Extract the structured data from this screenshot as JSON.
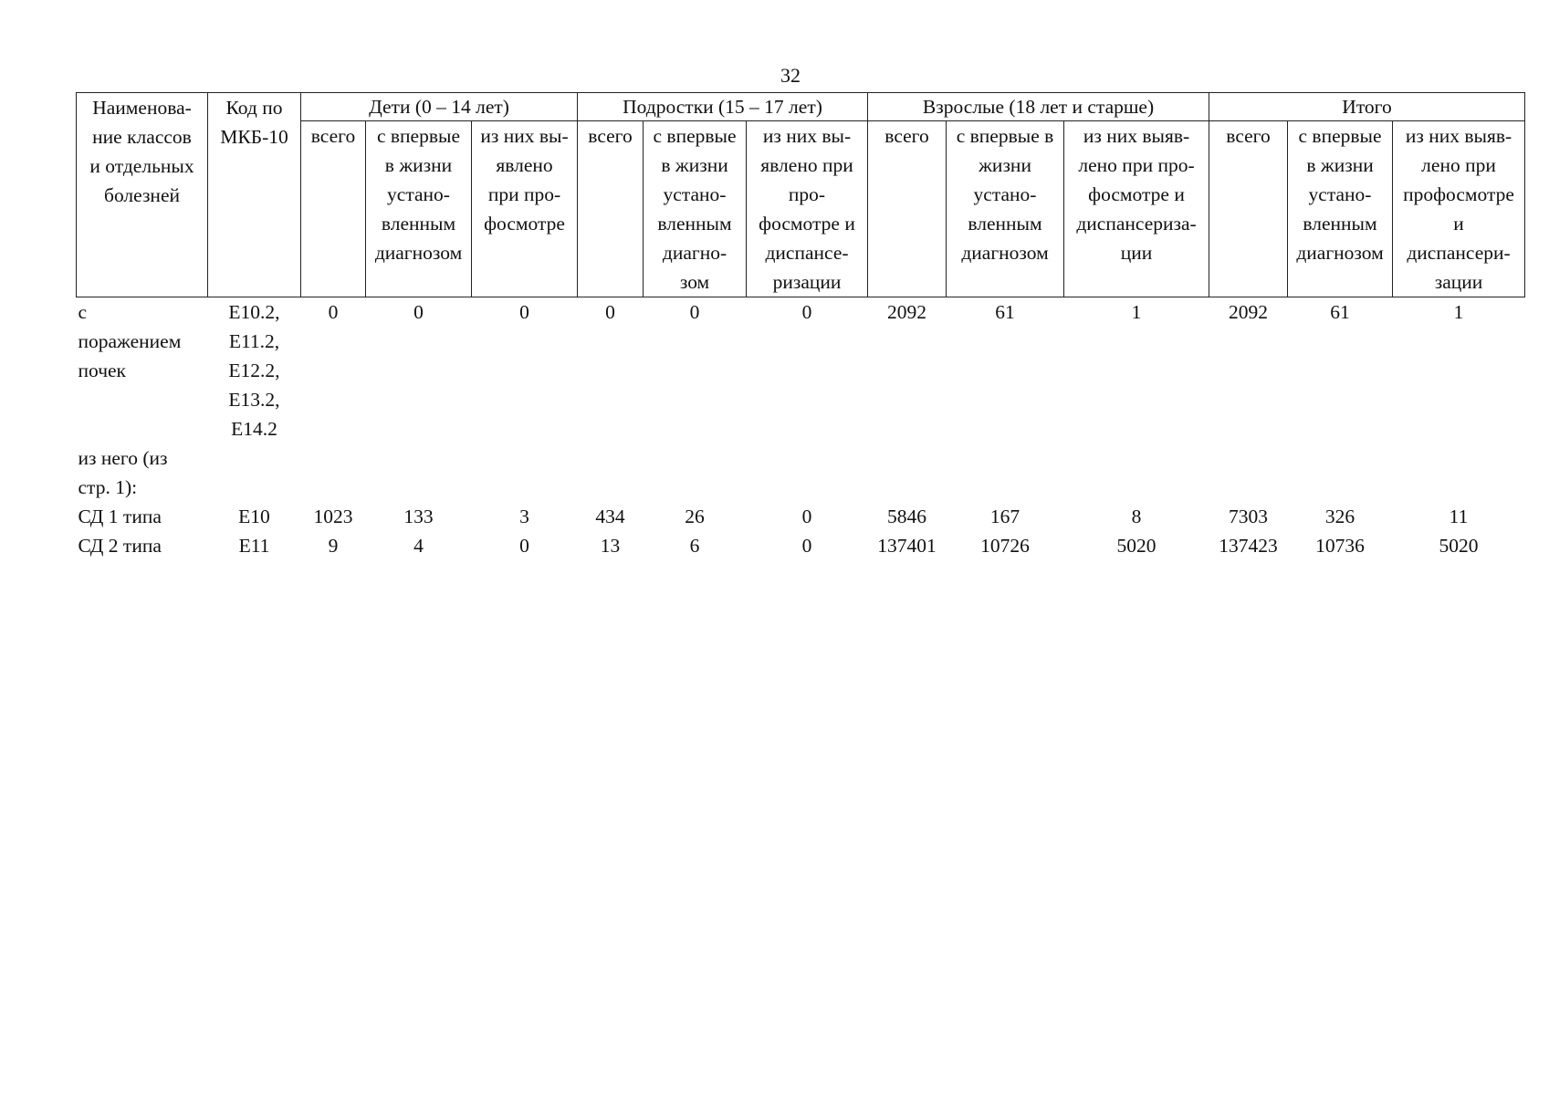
{
  "page_number": 32,
  "table": {
    "name_header": "Наименова-\nние классов\nи отдельных\nболезней",
    "code_header": "Код по\nМКБ-10",
    "groups": [
      {
        "title": "Дети (0 – 14 лет)",
        "sub_headers": [
          "всего",
          "с впервые\nв жизни\nустано-\nвленным\nдиагнозом",
          "из них вы-\nявлено\nпри про-\nфосмотре"
        ]
      },
      {
        "title": "Подростки (15 – 17 лет)",
        "sub_headers": [
          "всего",
          "с впервые\nв жизни\nустано-\nвленным\nдиагно-\nзом",
          "из них вы-\nявлено при\nпро-\nфосмотре и\nдиспансе-\nризации"
        ]
      },
      {
        "title": "Взрослые (18 лет и старше)",
        "sub_headers": [
          "всего",
          "с впервые в\nжизни\nустано-\nвленным\nдиагнозом",
          "из них выяв-\nлено при про-\nфосмотре и\nдиспансериза-\nции"
        ]
      },
      {
        "title": "Итого",
        "sub_headers": [
          "всего",
          "с впервые\nв жизни\nустано-\nвленным\nдиагнозом",
          "из них выяв-\nлено при\nпрофосмотре\nи\nдиспансери-\nзации"
        ]
      }
    ],
    "rows": [
      {
        "name": "с\nпоражением\nпочек",
        "code": "E10.2,\nE11.2,\nE12.2,\nE13.2,\nE14.2",
        "values": [
          0,
          0,
          0,
          0,
          0,
          0,
          2092,
          61,
          1,
          2092,
          61,
          1
        ]
      },
      {
        "name": "из него (из\nстр. 1):"
      },
      {
        "name": "СД 1 типа",
        "code": "E10",
        "values": [
          1023,
          133,
          3,
          434,
          26,
          0,
          5846,
          167,
          8,
          7303,
          326,
          11
        ]
      },
      {
        "name": "СД 2 типа",
        "code": "E11",
        "values": [
          9,
          4,
          0,
          13,
          6,
          0,
          137401,
          10726,
          5020,
          137423,
          10736,
          5020
        ]
      }
    ]
  }
}
